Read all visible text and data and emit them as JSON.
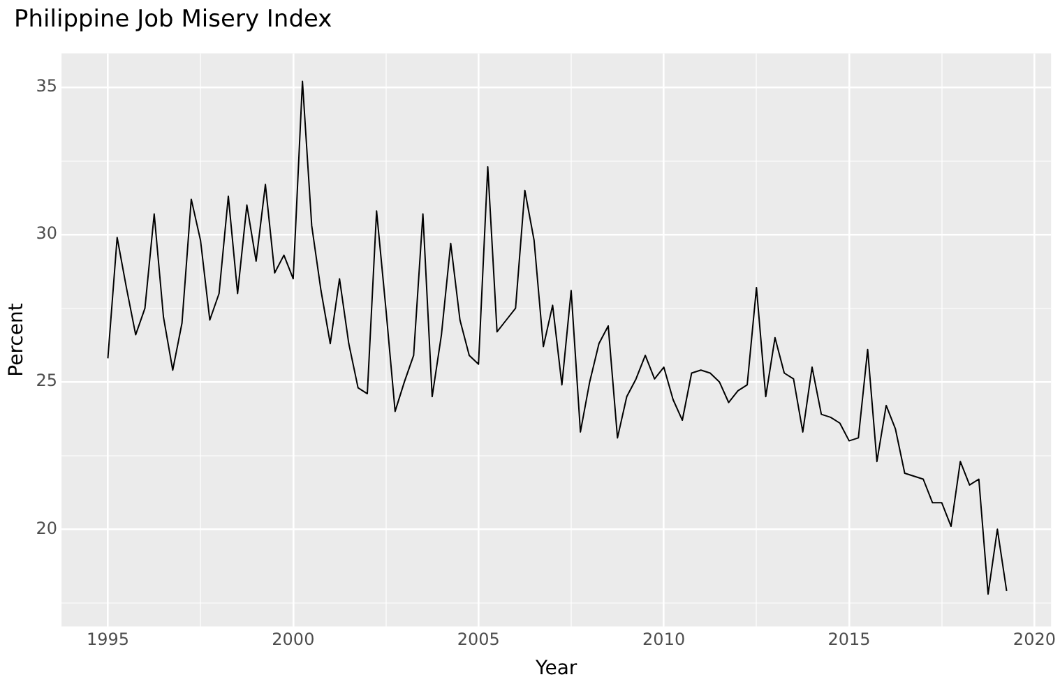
{
  "chart_data": {
    "type": "line",
    "title": "Philippine Job Misery Index",
    "xlabel": "Year",
    "ylabel": "Percent",
    "grid": true,
    "legend": false,
    "marker": "none",
    "line_style": "solid",
    "xlim": [
      1993.75,
      2020.45
    ],
    "ylim": [
      16.7,
      36.15
    ],
    "xticks": [
      {
        "value": 1995,
        "label": "1995"
      },
      {
        "value": 1997.5,
        "label": null
      },
      {
        "value": 2000,
        "label": "2000"
      },
      {
        "value": 2002.5,
        "label": null
      },
      {
        "value": 2005,
        "label": "2005"
      },
      {
        "value": 2007.5,
        "label": null
      },
      {
        "value": 2010,
        "label": "2010"
      },
      {
        "value": 2012.5,
        "label": null
      },
      {
        "value": 2015,
        "label": "2015"
      },
      {
        "value": 2017.5,
        "label": null
      },
      {
        "value": 2020,
        "label": "2020"
      }
    ],
    "yticks": [
      {
        "value": 17.5,
        "label": null
      },
      {
        "value": 20,
        "label": "20"
      },
      {
        "value": 22.5,
        "label": null
      },
      {
        "value": 25,
        "label": "25"
      },
      {
        "value": 27.5,
        "label": null
      },
      {
        "value": 30,
        "label": "30"
      },
      {
        "value": 32.5,
        "label": null
      },
      {
        "value": 35,
        "label": "35"
      }
    ],
    "x": [
      1995,
      1995.25,
      1995.5,
      1995.75,
      1996,
      1996.25,
      1996.5,
      1996.75,
      1997,
      1997.25,
      1997.5,
      1997.75,
      1998,
      1998.25,
      1998.5,
      1998.75,
      1999,
      1999.25,
      1999.5,
      1999.75,
      2000,
      2000.25,
      2000.5,
      2000.75,
      2001,
      2001.25,
      2001.5,
      2001.75,
      2002,
      2002.25,
      2002.5,
      2002.75,
      2003,
      2003.25,
      2003.5,
      2003.75,
      2004,
      2004.25,
      2004.5,
      2004.75,
      2005,
      2005.25,
      2005.5,
      2005.75,
      2006,
      2006.25,
      2006.5,
      2006.75,
      2007,
      2007.25,
      2007.5,
      2007.75,
      2008,
      2008.25,
      2008.5,
      2008.75,
      2009,
      2009.25,
      2009.5,
      2009.75,
      2010,
      2010.25,
      2010.5,
      2010.75,
      2011,
      2011.25,
      2011.5,
      2011.75,
      2012,
      2012.25,
      2012.5,
      2012.75,
      2013,
      2013.25,
      2013.5,
      2013.75,
      2014,
      2014.25,
      2014.5,
      2014.75,
      2015,
      2015.25,
      2015.5,
      2015.75,
      2016,
      2016.25,
      2016.5,
      2016.75,
      2017,
      2017.25,
      2017.5,
      2017.75,
      2018,
      2018.25,
      2018.5,
      2018.75,
      2019,
      2019.25
    ],
    "series": [
      {
        "color": "#000000",
        "values": [
          25.8,
          29.9,
          28.2,
          26.6,
          27.5,
          30.7,
          27.2,
          25.4,
          27.0,
          31.2,
          29.8,
          27.1,
          28.0,
          31.3,
          28.0,
          31.0,
          29.1,
          31.7,
          28.7,
          29.3,
          28.5,
          35.2,
          30.3,
          28.1,
          26.3,
          28.5,
          26.3,
          24.8,
          24.6,
          30.8,
          27.5,
          24.0,
          25.0,
          25.9,
          30.7,
          24.5,
          26.6,
          29.7,
          27.1,
          25.9,
          25.6,
          32.3,
          26.7,
          27.1,
          27.5,
          31.5,
          29.8,
          26.2,
          27.6,
          24.9,
          28.1,
          23.3,
          25.0,
          26.3,
          26.9,
          23.1,
          24.5,
          25.1,
          25.9,
          25.1,
          25.5,
          24.4,
          23.7,
          25.3,
          25.4,
          25.3,
          25.0,
          24.3,
          24.7,
          24.9,
          28.2,
          24.5,
          26.5,
          25.3,
          25.1,
          23.3,
          25.5,
          23.9,
          23.8,
          23.6,
          23.0,
          23.1,
          26.1,
          22.3,
          24.2,
          23.4,
          21.9,
          21.8,
          21.7,
          20.9,
          20.9,
          20.1,
          22.3,
          21.5,
          21.7,
          17.8,
          20.0,
          17.9
        ]
      }
    ]
  }
}
